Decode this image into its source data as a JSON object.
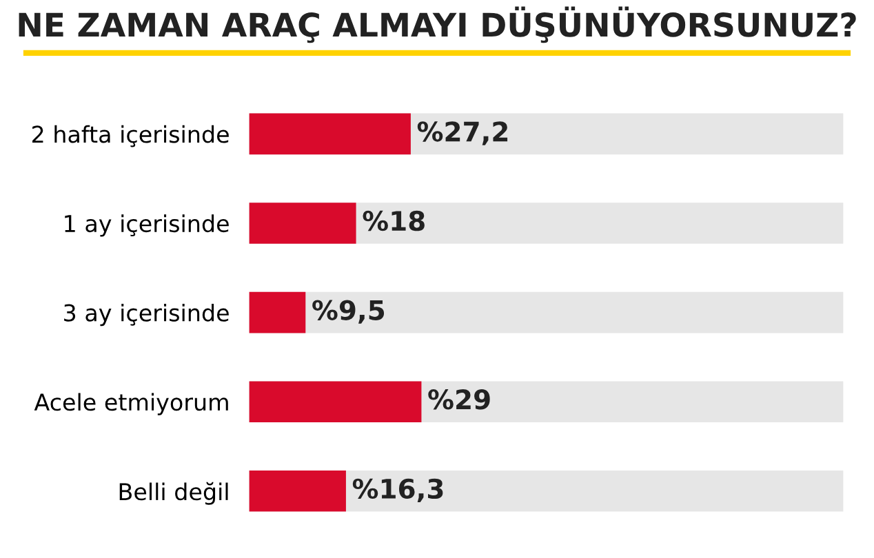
{
  "chart_data": {
    "type": "bar",
    "orientation": "horizontal",
    "title": "NE ZAMAN ARAÇ ALMAYI DÜŞÜNÜYORSUNUZ?",
    "categories": [
      "2 hafta içerisinde",
      "1 ay içerisinde",
      "3 ay içerisinde",
      "Acele etmiyorum",
      "Belli değil"
    ],
    "values": [
      27.2,
      18,
      9.5,
      29,
      16.3
    ],
    "value_labels": [
      "%27,2",
      "%18",
      "%9,5",
      "%29",
      "%16,3"
    ],
    "color": "#d90a2c",
    "xlim": [
      0,
      100
    ],
    "tick_labels": "y",
    "grid": false,
    "legend": false
  }
}
